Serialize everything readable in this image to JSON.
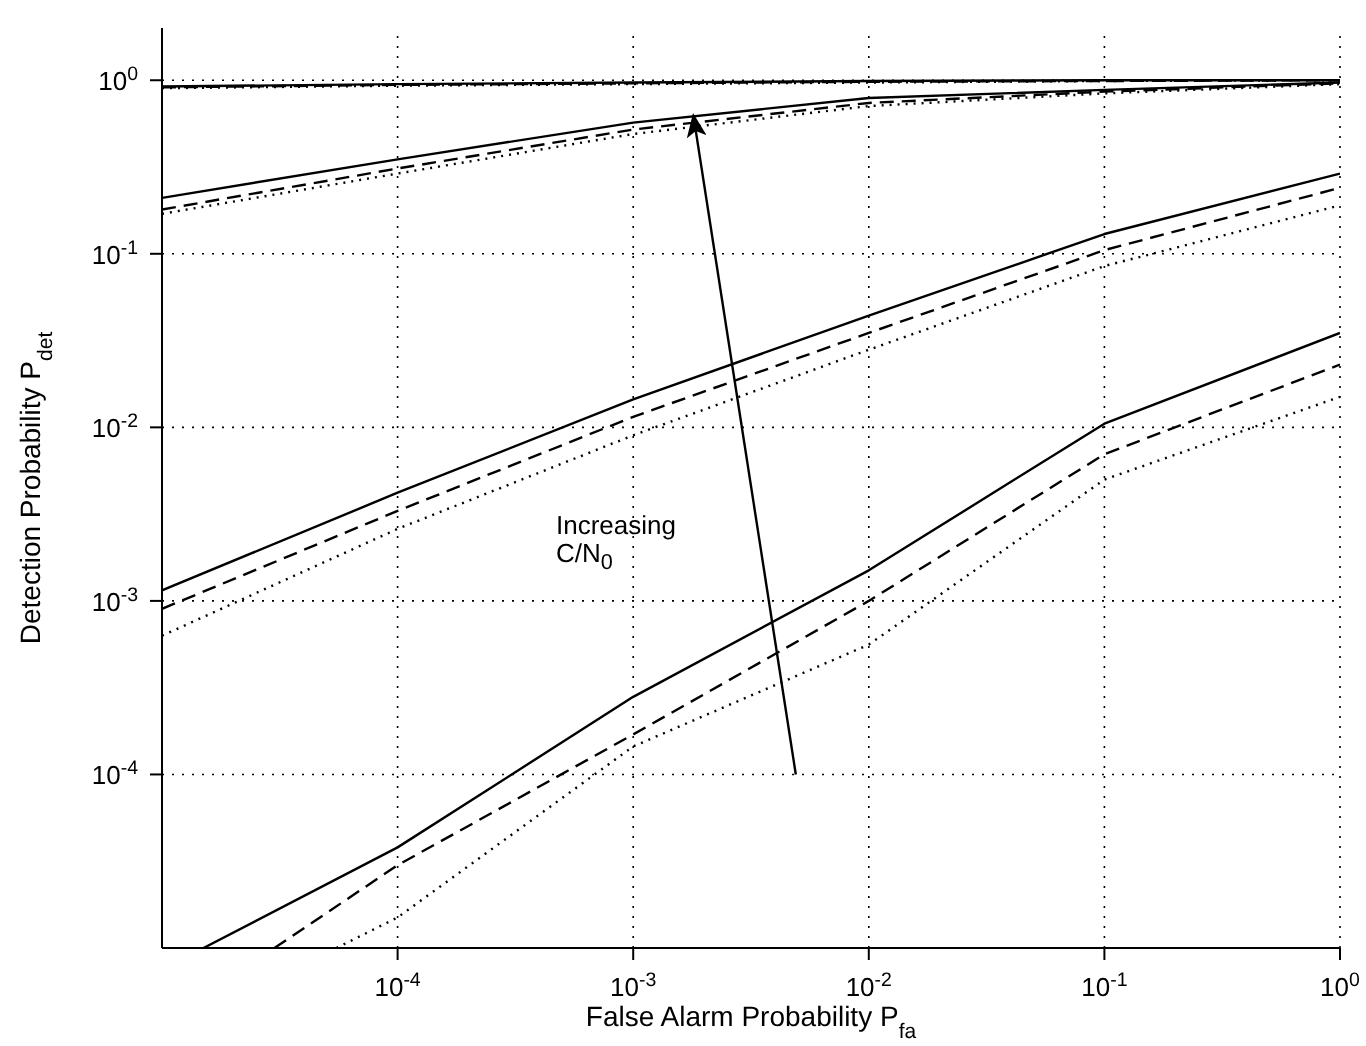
{
  "chart_data": {
    "type": "line",
    "xlabel": "False Alarm Probability P$_{fa}$",
    "ylabel": "Detection Probability P$_{det}$",
    "log": "xy",
    "grid": true,
    "xlim": [
      1e-05,
      1
    ],
    "xticks": [
      {
        "value": 0.0001,
        "label": "10$^{-4}$"
      },
      {
        "value": 0.001,
        "label": "10$^{-3}$"
      },
      {
        "value": 0.01,
        "label": "10$^{-2}$"
      },
      {
        "value": 0.1,
        "label": "10$^{-1}$"
      },
      {
        "value": 1,
        "label": "10$^{0}$"
      }
    ],
    "ylim": [
      1e-05,
      2
    ],
    "yticks": [
      {
        "value": 0.0001,
        "label": "10$^{-4}$"
      },
      {
        "value": 0.001,
        "label": "10$^{-3}$"
      },
      {
        "value": 0.01,
        "label": "10$^{-2}$"
      },
      {
        "value": 0.1,
        "label": "10$^{-1}$"
      },
      {
        "value": 1,
        "label": "10$^{0}$"
      }
    ],
    "x": [
      1e-05,
      0.0001,
      0.001,
      0.01,
      0.1,
      1
    ],
    "series": [
      {
        "color": "#000000",
        "line_style": "solid",
        "x": [
          1.5e-05,
          0.0001,
          0.001,
          0.01,
          0.1,
          1
        ],
        "values": [
          1e-05,
          3.8e-05,
          0.00028,
          0.0015,
          0.0105,
          0.035
        ]
      },
      {
        "color": "#000000",
        "line_style": "dashed",
        "x": [
          3e-05,
          0.0001,
          0.001,
          0.01,
          0.1,
          1
        ],
        "values": [
          1e-05,
          3e-05,
          0.00017,
          0.001,
          0.007,
          0.023
        ]
      },
      {
        "color": "#000000",
        "line_style": "dotted",
        "x": [
          5.5e-05,
          0.0001,
          0.001,
          0.01,
          0.1,
          1
        ],
        "values": [
          1e-05,
          1.5e-05,
          0.000145,
          0.00056,
          0.005,
          0.015
        ]
      },
      {
        "color": "#000000",
        "line_style": "solid",
        "values": [
          0.00115,
          0.0042,
          0.0145,
          0.044,
          0.13,
          0.29
        ]
      },
      {
        "color": "#000000",
        "line_style": "dashed",
        "values": [
          0.0009,
          0.0033,
          0.0115,
          0.035,
          0.105,
          0.24
        ]
      },
      {
        "color": "#000000",
        "line_style": "dotted",
        "values": [
          0.00063,
          0.0026,
          0.009,
          0.028,
          0.085,
          0.19
        ]
      },
      {
        "color": "#000000",
        "line_style": "solid",
        "values": [
          0.21,
          0.35,
          0.57,
          0.79,
          0.88,
          0.97
        ]
      },
      {
        "color": "#000000",
        "line_style": "dashed",
        "values": [
          0.18,
          0.31,
          0.52,
          0.74,
          0.86,
          0.96
        ]
      },
      {
        "color": "#000000",
        "line_style": "dotted",
        "values": [
          0.17,
          0.29,
          0.49,
          0.71,
          0.84,
          0.95
        ]
      },
      {
        "color": "#000000",
        "line_style": "solid",
        "values": [
          0.92,
          0.95,
          0.97,
          0.99,
          1.0,
          1.0
        ]
      },
      {
        "color": "#000000",
        "line_style": "dashed",
        "values": [
          0.91,
          0.94,
          0.96,
          0.98,
          0.99,
          1.0
        ]
      },
      {
        "color": "#000000",
        "line_style": "dotted",
        "values": [
          0.9,
          0.93,
          0.95,
          0.97,
          0.99,
          1.0
        ]
      }
    ],
    "annotations": [
      "Increasing C/N$_{0}$"
    ]
  }
}
